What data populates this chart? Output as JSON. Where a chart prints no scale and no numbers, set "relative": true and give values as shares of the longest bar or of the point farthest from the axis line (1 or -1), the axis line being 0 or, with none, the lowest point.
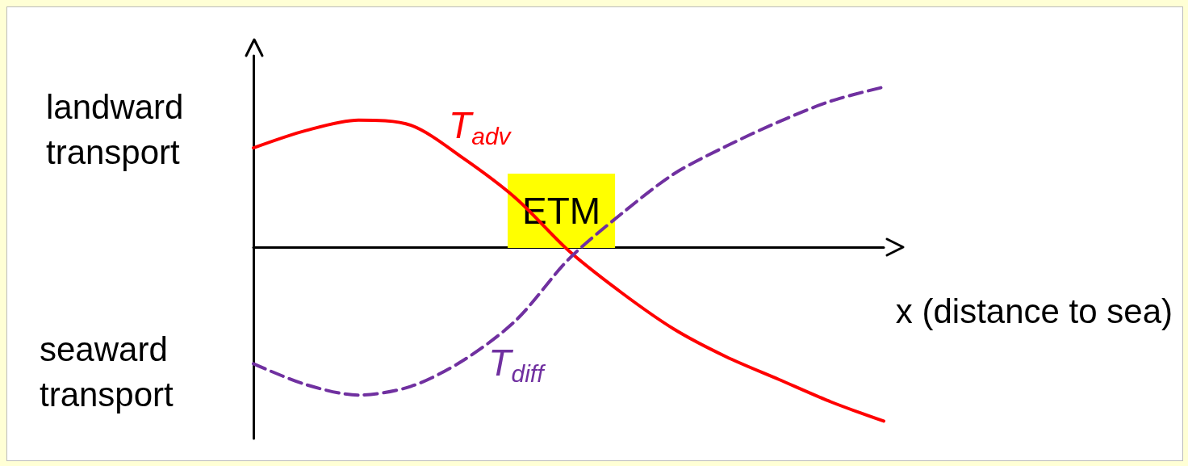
{
  "chart_data": {
    "type": "line",
    "relative": true,
    "xlabel": "x (distance to sea)",
    "categories": [
      null,
      null,
      null,
      null,
      null,
      null,
      null,
      null,
      null,
      null,
      null,
      null,
      null
    ],
    "series": [
      {
        "name": "T$_{adv}$",
        "color": "#ff0000",
        "line_style": "solid",
        "values": [
          0.57,
          0.67,
          0.73,
          0.7,
          0.51,
          0.28,
          -0.02,
          -0.26,
          -0.47,
          -0.63,
          -0.76,
          -0.89,
          -1
        ]
      },
      {
        "name": "T$_{diff}$",
        "color": "#7030a0",
        "line_style": "dashed",
        "values": [
          -0.67,
          -0.79,
          -0.85,
          -0.8,
          -0.65,
          -0.42,
          -0.07,
          0.19,
          0.42,
          0.58,
          0.72,
          0.84,
          0.92
        ]
      }
    ],
    "annotations": [
      "landward transport",
      "seaward transport",
      "ETM"
    ],
    "marker": "none",
    "grid": false,
    "legend": false
  }
}
